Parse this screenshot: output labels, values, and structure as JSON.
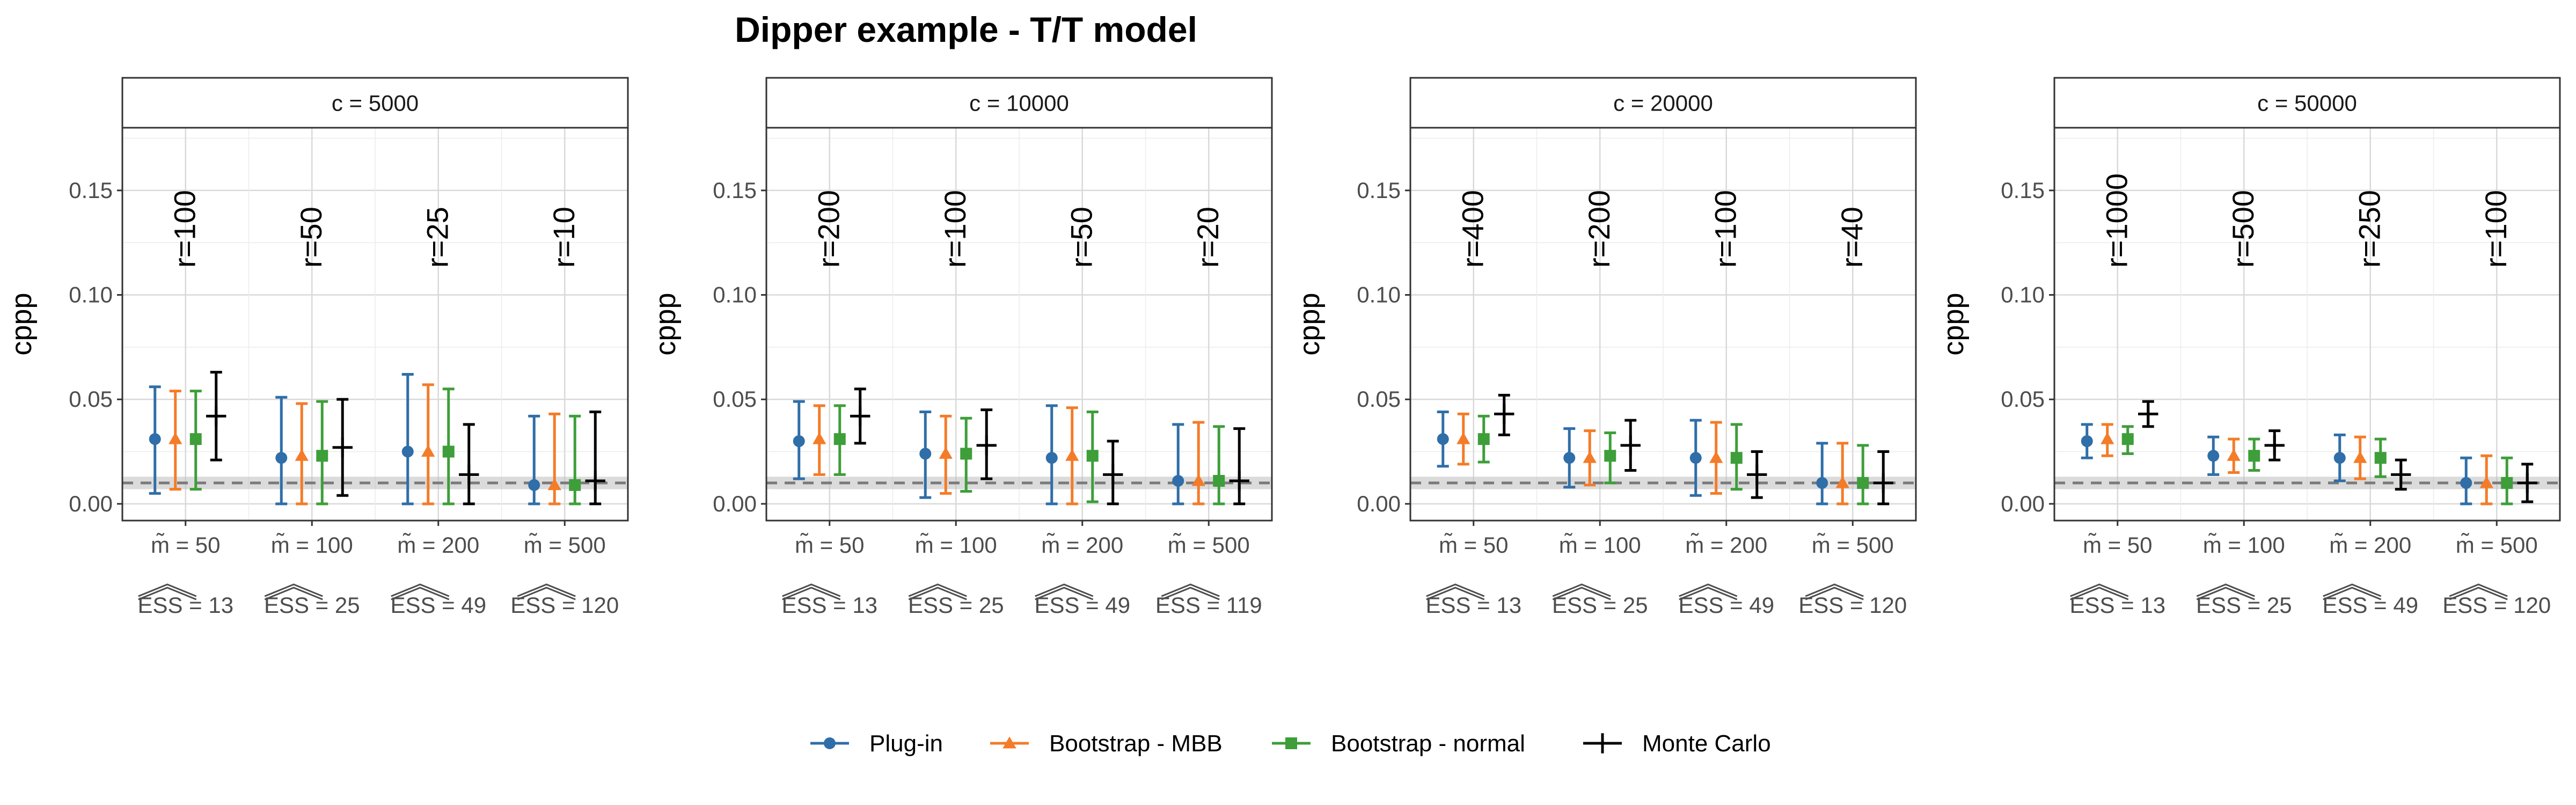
{
  "title": "Dipper example - T/T model",
  "legend": [
    {
      "name": "Plug-in",
      "color": "#2f6ea8",
      "marker": "circle"
    },
    {
      "name": "Bootstrap - MBB",
      "color": "#f47b28",
      "marker": "triangle"
    },
    {
      "name": "Bootstrap - normal",
      "color": "#3e9e3a",
      "marker": "square"
    },
    {
      "name": "Monte Carlo",
      "color": "#000000",
      "marker": "plus"
    }
  ],
  "chart_data": {
    "type": "errorbar",
    "ylabel": "cppp",
    "ylim": [
      -0.008,
      0.18
    ],
    "yticks": [
      "0.00",
      "0.05",
      "0.10",
      "0.15"
    ],
    "ytick_values": [
      0.0,
      0.05,
      0.1,
      0.15
    ],
    "reference_line": 0.01,
    "reference_band": [
      0.007,
      0.013
    ],
    "grid": true,
    "panels": [
      {
        "strip": "c = 5000",
        "categories": [
          "m̃ = 50",
          "m̃ = 100",
          "m̃ = 200",
          "m̃ = 500"
        ],
        "ess_labels": [
          "ESS = 13",
          "ESS = 25",
          "ESS = 49",
          "ESS = 120"
        ],
        "r_labels": [
          "r=100",
          "r=50",
          "r=25",
          "r=10"
        ],
        "series": [
          {
            "name": "Plug-in",
            "points": [
              [
                0.031,
                0.005,
                0.056
              ],
              [
                0.022,
                0.0,
                0.051
              ],
              [
                0.025,
                0.0,
                0.062
              ],
              [
                0.009,
                0.0,
                0.042
              ]
            ]
          },
          {
            "name": "Bootstrap - MBB",
            "points": [
              [
                0.031,
                0.007,
                0.054
              ],
              [
                0.023,
                0.0,
                0.048
              ],
              [
                0.025,
                0.0,
                0.057
              ],
              [
                0.009,
                0.0,
                0.043
              ]
            ]
          },
          {
            "name": "Bootstrap - normal",
            "points": [
              [
                0.031,
                0.007,
                0.054
              ],
              [
                0.023,
                0.0,
                0.049
              ],
              [
                0.025,
                0.0,
                0.055
              ],
              [
                0.009,
                0.0,
                0.042
              ]
            ]
          },
          {
            "name": "Monte Carlo",
            "points": [
              [
                0.042,
                0.021,
                0.063
              ],
              [
                0.027,
                0.004,
                0.05
              ],
              [
                0.014,
                0.0,
                0.038
              ],
              [
                0.011,
                0.0,
                0.044
              ]
            ]
          }
        ]
      },
      {
        "strip": "c = 10000",
        "categories": [
          "m̃ = 50",
          "m̃ = 100",
          "m̃ = 200",
          "m̃ = 500"
        ],
        "ess_labels": [
          "ESS = 13",
          "ESS = 25",
          "ESS = 49",
          "ESS = 119"
        ],
        "r_labels": [
          "r=200",
          "r=100",
          "r=50",
          "r=20"
        ],
        "series": [
          {
            "name": "Plug-in",
            "points": [
              [
                0.03,
                0.012,
                0.049
              ],
              [
                0.024,
                0.003,
                0.044
              ],
              [
                0.022,
                0.0,
                0.047
              ],
              [
                0.011,
                0.0,
                0.038
              ]
            ]
          },
          {
            "name": "Bootstrap - MBB",
            "points": [
              [
                0.031,
                0.014,
                0.047
              ],
              [
                0.024,
                0.005,
                0.042
              ],
              [
                0.023,
                0.0,
                0.046
              ],
              [
                0.011,
                0.0,
                0.039
              ]
            ]
          },
          {
            "name": "Bootstrap - normal",
            "points": [
              [
                0.031,
                0.014,
                0.047
              ],
              [
                0.024,
                0.006,
                0.041
              ],
              [
                0.023,
                0.001,
                0.044
              ],
              [
                0.011,
                0.0,
                0.037
              ]
            ]
          },
          {
            "name": "Monte Carlo",
            "points": [
              [
                0.042,
                0.029,
                0.055
              ],
              [
                0.028,
                0.012,
                0.045
              ],
              [
                0.014,
                0.0,
                0.03
              ],
              [
                0.011,
                0.0,
                0.036
              ]
            ]
          }
        ]
      },
      {
        "strip": "c = 20000",
        "categories": [
          "m̃ = 50",
          "m̃ = 100",
          "m̃ = 200",
          "m̃ = 500"
        ],
        "ess_labels": [
          "ESS = 13",
          "ESS = 25",
          "ESS = 49",
          "ESS = 120"
        ],
        "r_labels": [
          "r=400",
          "r=200",
          "r=100",
          "r=40"
        ],
        "series": [
          {
            "name": "Plug-in",
            "points": [
              [
                0.031,
                0.018,
                0.044
              ],
              [
                0.022,
                0.008,
                0.036
              ],
              [
                0.022,
                0.004,
                0.04
              ],
              [
                0.01,
                0.0,
                0.029
              ]
            ]
          },
          {
            "name": "Bootstrap - MBB",
            "points": [
              [
                0.031,
                0.019,
                0.043
              ],
              [
                0.022,
                0.009,
                0.035
              ],
              [
                0.022,
                0.005,
                0.039
              ],
              [
                0.01,
                0.0,
                0.029
              ]
            ]
          },
          {
            "name": "Bootstrap - normal",
            "points": [
              [
                0.031,
                0.02,
                0.042
              ],
              [
                0.023,
                0.01,
                0.034
              ],
              [
                0.022,
                0.007,
                0.038
              ],
              [
                0.01,
                0.0,
                0.028
              ]
            ]
          },
          {
            "name": "Monte Carlo",
            "points": [
              [
                0.043,
                0.033,
                0.052
              ],
              [
                0.028,
                0.016,
                0.04
              ],
              [
                0.014,
                0.003,
                0.025
              ],
              [
                0.01,
                0.0,
                0.025
              ]
            ]
          }
        ]
      },
      {
        "strip": "c = 50000",
        "categories": [
          "m̃ = 50",
          "m̃ = 100",
          "m̃ = 200",
          "m̃ = 500"
        ],
        "ess_labels": [
          "ESS = 13",
          "ESS = 25",
          "ESS = 49",
          "ESS = 120"
        ],
        "r_labels": [
          "r=1000",
          "r=500",
          "r=250",
          "r=100"
        ],
        "series": [
          {
            "name": "Plug-in",
            "points": [
              [
                0.03,
                0.022,
                0.038
              ],
              [
                0.023,
                0.014,
                0.032
              ],
              [
                0.022,
                0.011,
                0.033
              ],
              [
                0.01,
                0.0,
                0.022
              ]
            ]
          },
          {
            "name": "Bootstrap - MBB",
            "points": [
              [
                0.031,
                0.023,
                0.038
              ],
              [
                0.023,
                0.015,
                0.031
              ],
              [
                0.022,
                0.012,
                0.032
              ],
              [
                0.01,
                0.0,
                0.023
              ]
            ]
          },
          {
            "name": "Bootstrap - normal",
            "points": [
              [
                0.031,
                0.024,
                0.037
              ],
              [
                0.023,
                0.016,
                0.031
              ],
              [
                0.022,
                0.013,
                0.031
              ],
              [
                0.01,
                0.0,
                0.022
              ]
            ]
          },
          {
            "name": "Monte Carlo",
            "points": [
              [
                0.043,
                0.037,
                0.049
              ],
              [
                0.028,
                0.021,
                0.035
              ],
              [
                0.014,
                0.007,
                0.021
              ],
              [
                0.01,
                0.001,
                0.019
              ]
            ]
          }
        ]
      }
    ]
  }
}
